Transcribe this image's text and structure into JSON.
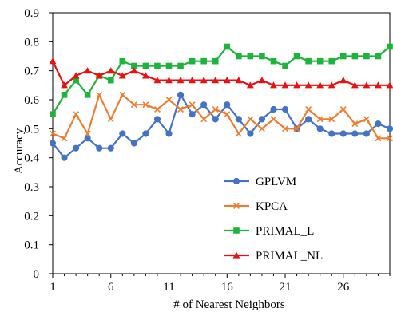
{
  "chart_data": {
    "type": "line",
    "title": "",
    "xlabel": "# of Nearest Neighbors",
    "ylabel": "Accuracy",
    "xlim": [
      1,
      30
    ],
    "ylim": [
      0,
      0.9
    ],
    "x_ticks": [
      1,
      6,
      11,
      16,
      21,
      26
    ],
    "y_ticks": [
      0,
      0.1,
      0.2,
      0.3,
      0.4,
      0.5,
      0.6,
      0.7,
      0.8,
      0.9
    ],
    "grid": false,
    "legend_position": "bottom-right",
    "x": [
      1,
      2,
      3,
      4,
      5,
      6,
      7,
      8,
      9,
      10,
      11,
      12,
      13,
      14,
      15,
      16,
      17,
      18,
      19,
      20,
      21,
      22,
      23,
      24,
      25,
      26,
      27,
      28,
      29,
      30
    ],
    "series": [
      {
        "name": "GPLVM",
        "color": "#4472C4",
        "marker": "circle",
        "values": [
          0.45,
          0.4,
          0.433,
          0.467,
          0.433,
          0.433,
          0.483,
          0.45,
          0.483,
          0.533,
          0.483,
          0.617,
          0.55,
          0.583,
          0.533,
          0.583,
          0.533,
          0.483,
          0.533,
          0.567,
          0.567,
          0.5,
          0.533,
          0.5,
          0.483,
          0.483,
          0.483,
          0.483,
          0.517,
          0.5
        ]
      },
      {
        "name": "KPCA",
        "color": "#ED7D31",
        "marker": "x",
        "values": [
          0.483,
          0.467,
          0.55,
          0.483,
          0.617,
          0.533,
          0.617,
          0.583,
          0.583,
          0.567,
          0.6,
          0.567,
          0.583,
          0.533,
          0.567,
          0.55,
          0.483,
          0.533,
          0.5,
          0.533,
          0.5,
          0.5,
          0.567,
          0.533,
          0.533,
          0.567,
          0.517,
          0.533,
          0.467,
          0.467
        ]
      },
      {
        "name": "PRIMAL_L",
        "color": "#1DB43C",
        "marker": "square",
        "values": [
          0.55,
          0.617,
          0.667,
          0.617,
          0.683,
          0.667,
          0.733,
          0.717,
          0.717,
          0.717,
          0.717,
          0.717,
          0.733,
          0.733,
          0.733,
          0.783,
          0.75,
          0.75,
          0.75,
          0.733,
          0.717,
          0.75,
          0.733,
          0.733,
          0.733,
          0.75,
          0.75,
          0.75,
          0.75,
          0.783
        ]
      },
      {
        "name": "PRIMAL_NL",
        "color": "#E81010",
        "marker": "triangle",
        "values": [
          0.733,
          0.65,
          0.683,
          0.7,
          0.683,
          0.7,
          0.683,
          0.7,
          0.683,
          0.667,
          0.667,
          0.667,
          0.667,
          0.667,
          0.667,
          0.667,
          0.667,
          0.65,
          0.667,
          0.65,
          0.65,
          0.65,
          0.65,
          0.65,
          0.65,
          0.667,
          0.65,
          0.65,
          0.65,
          0.65
        ]
      }
    ]
  }
}
